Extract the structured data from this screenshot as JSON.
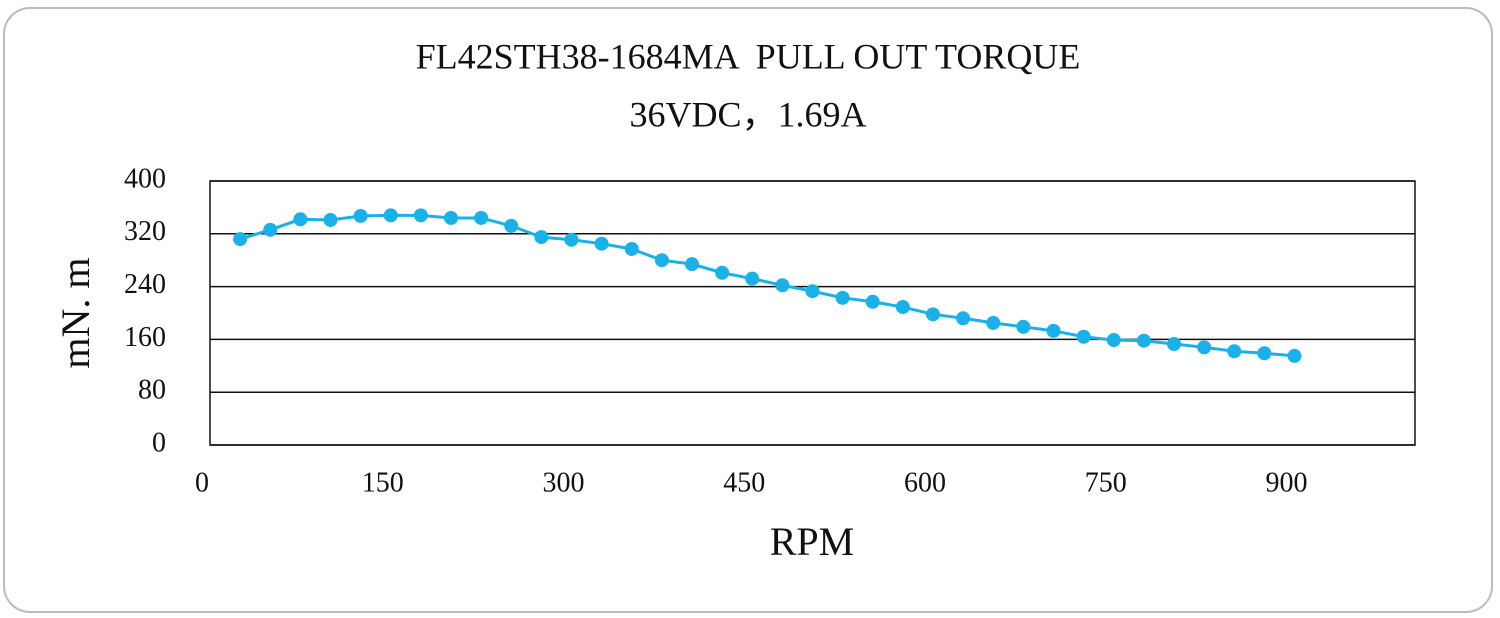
{
  "chart_data": {
    "type": "line",
    "title": "FL42STH38-1684MA  PULL OUT TORQUE",
    "subtitle": "36VDC，1.69A",
    "x_label": "RPM",
    "y_label": "mN. m",
    "x": [
      25,
      50,
      75,
      100,
      125,
      150,
      175,
      200,
      225,
      250,
      275,
      300,
      325,
      350,
      375,
      400,
      425,
      450,
      475,
      500,
      525,
      550,
      575,
      600,
      625,
      650,
      675,
      700,
      725,
      750,
      775,
      800,
      825,
      850,
      875,
      900
    ],
    "series": [
      {
        "name": "pull out torque",
        "color": "#1ab0e8",
        "values": [
          312,
          326,
          342,
          341,
          347,
          348,
          348,
          344,
          344,
          332,
          315,
          311,
          305,
          297,
          280,
          274,
          261,
          252,
          242,
          233,
          223,
          217,
          209,
          198,
          192,
          185,
          179,
          173,
          164,
          159,
          158,
          153,
          148,
          142,
          139,
          135
        ]
      }
    ],
    "xlim": [
      0,
      1000
    ],
    "xticks": [
      0,
      150,
      300,
      450,
      600,
      750,
      900
    ],
    "ylim": [
      0,
      400
    ],
    "yticks": [
      0,
      80,
      160,
      240,
      320,
      400
    ],
    "grid": true
  }
}
